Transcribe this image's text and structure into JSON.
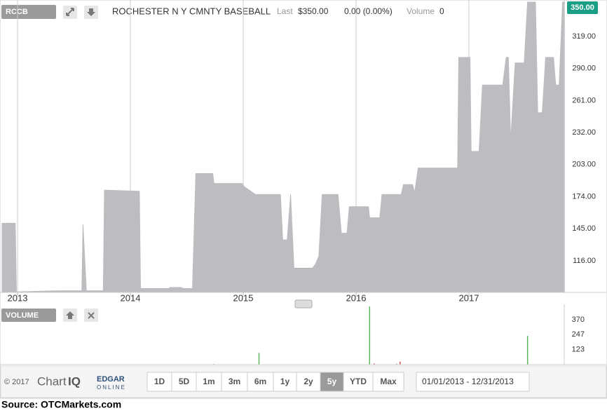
{
  "header": {
    "symbol": "RCCB",
    "company": "ROCHESTER N Y CMNTY BASEBALL",
    "last_label": "Last",
    "last": "$350.00",
    "change": "0.00 (0.00%)",
    "volume_label": "Volume",
    "volume": "0",
    "price_tag": "350.00"
  },
  "chart_data": [
    {
      "type": "area",
      "color": "#bdbdc1",
      "x": [
        2012.86,
        2012.98,
        2012.99,
        2013.36,
        2013.57,
        2013.58,
        2013.61,
        2013.76,
        2013.77,
        2014.08,
        2014.09,
        2014.34,
        2014.35,
        2014.45,
        2014.47,
        2014.55,
        2014.58,
        2014.73,
        2014.74,
        2014.99,
        2015.01,
        2015.11,
        2015.33,
        2015.35,
        2015.39,
        2015.42,
        2015.45,
        2015.61,
        2015.64,
        2015.67,
        2015.7,
        2015.84,
        2015.87,
        2015.92,
        2015.94,
        2016.11,
        2016.12,
        2016.21,
        2016.23,
        2016.4,
        2016.42,
        2016.5,
        2016.52,
        2016.55,
        2016.9,
        2016.91,
        2017.01,
        2017.02,
        2017.09,
        2017.12,
        2017.3,
        2017.33,
        2017.35,
        2017.37,
        2017.41,
        2017.49,
        2017.52,
        2017.59,
        2017.61,
        2017.65,
        2017.68,
        2017.75,
        2017.77,
        2017.8,
        2017.83,
        2017.85
      ],
      "values": [
        150,
        150,
        88,
        89,
        89,
        149,
        89,
        89,
        180,
        179,
        91,
        91,
        92,
        92,
        91,
        91,
        195,
        195,
        186,
        186,
        183,
        176,
        176,
        135,
        135,
        176,
        109,
        109,
        113,
        120,
        176,
        176,
        141,
        141,
        165,
        165,
        155,
        155,
        176,
        176,
        185,
        185,
        178,
        200,
        200,
        300,
        300,
        215,
        215,
        275,
        275,
        300,
        300,
        225,
        295,
        295,
        350,
        350,
        250,
        250,
        300,
        300,
        275,
        275,
        350,
        350
      ],
      "xlim": [
        2012.857,
        2017.845
      ],
      "xticks": [
        2013,
        2014,
        2015,
        2016,
        2017
      ],
      "ylim": [
        87.5,
        350
      ],
      "yticks": [
        {
          "value": 116,
          "label": "116.00"
        },
        {
          "value": 145,
          "label": "145.00"
        },
        {
          "value": 174,
          "label": "174.00"
        },
        {
          "value": 203,
          "label": "203.00"
        },
        {
          "value": 232,
          "label": "232.00"
        },
        {
          "value": 261,
          "label": "261.00"
        },
        {
          "value": 290,
          "label": "290.00"
        },
        {
          "value": 319,
          "label": "319.00"
        }
      ],
      "grid": true
    },
    {
      "type": "bar",
      "label": "VOLUME",
      "xlim": [
        2012.857,
        2017.845
      ],
      "ylim": [
        0,
        480
      ],
      "yticks": [
        123,
        247,
        370
      ],
      "series": [
        {
          "color": "#5cb85c",
          "x": [
            2015.14,
            2016.12,
            2016.36,
            2017.52
          ],
          "values": [
            97,
            480,
            8,
            237
          ]
        },
        {
          "color": "#d9534f",
          "x": [
            2014.74,
            2016.16,
            2016.39
          ],
          "values": [
            5,
            10,
            25
          ]
        }
      ]
    }
  ],
  "footer": {
    "copyright": "© 2017",
    "logo_chart": "Chart",
    "logo_iq": "IQ",
    "edgar": "EDGAR",
    "online": "ONLINE",
    "range_buttons": [
      "1D",
      "5D",
      "1m",
      "3m",
      "6m",
      "1y",
      "2y",
      "5y",
      "YTD",
      "Max"
    ],
    "selected_index": 7,
    "date_range": "01/01/2013 - 12/31/2013"
  },
  "source": "Source: OTCMarkets.com"
}
